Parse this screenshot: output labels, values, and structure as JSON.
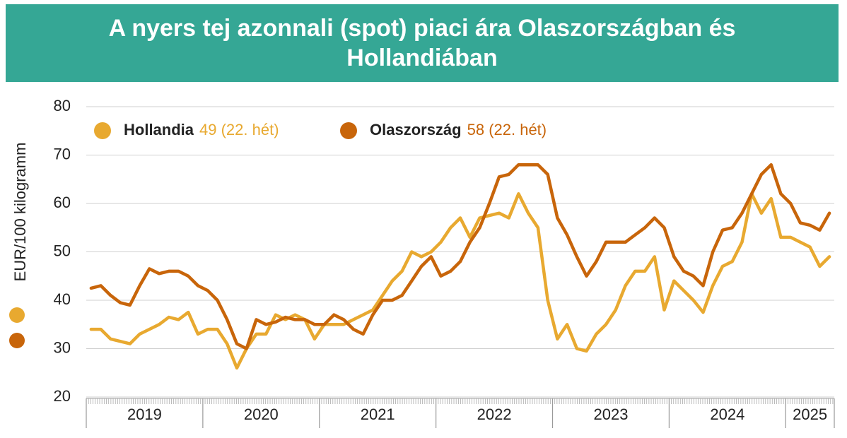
{
  "chart_data": {
    "type": "line",
    "title": "A nyers tej azonnali (spot) piaci ára Olaszországban és Hollandiában",
    "y_label": "EUR/100 kilogramm",
    "categories": [
      null,
      null,
      null,
      null,
      null,
      null,
      "2019",
      null,
      null,
      null,
      null,
      null,
      null,
      null,
      null,
      null,
      null,
      null,
      "2020",
      null,
      null,
      null,
      null,
      null,
      null,
      null,
      null,
      null,
      null,
      null,
      "2021",
      null,
      null,
      null,
      null,
      null,
      null,
      null,
      null,
      null,
      null,
      null,
      "2022",
      null,
      null,
      null,
      null,
      null,
      null,
      null,
      null,
      null,
      null,
      null,
      "2023",
      null,
      null,
      null,
      null,
      null,
      null,
      null,
      null,
      null,
      null,
      null,
      "2024",
      null,
      null,
      null,
      null,
      null,
      null,
      null,
      "2025",
      null,
      null
    ],
    "ylim": [
      20,
      80
    ],
    "yticks": [
      20,
      30,
      40,
      50,
      60,
      70,
      80
    ],
    "grid": true,
    "series": [
      {
        "name": "Hollandia",
        "legend_note": "49 (22. hét)",
        "color": "#e8a930",
        "values": [
          34,
          34,
          32,
          31.5,
          31,
          33,
          34,
          35,
          36.5,
          36,
          37.5,
          33,
          34,
          34,
          31,
          26,
          30,
          33,
          33,
          37,
          36,
          37,
          36,
          32,
          35,
          35,
          35,
          36,
          37,
          38,
          41,
          44,
          46,
          50,
          49,
          50,
          52,
          55,
          57,
          53,
          57,
          57.5,
          58,
          57,
          62,
          58,
          55,
          40,
          32,
          35,
          30,
          29.5,
          33,
          35,
          38,
          43,
          46,
          46,
          49,
          38,
          44,
          42,
          40,
          37.5,
          43,
          47,
          48,
          52,
          62,
          58,
          61,
          53,
          53,
          52,
          51,
          47,
          49
        ]
      },
      {
        "name": "Olaszország",
        "legend_note": "58 (22. hét)",
        "color": "#c8650a",
        "values": [
          42.5,
          43,
          41,
          39.5,
          39,
          43,
          46.5,
          45.5,
          46,
          46,
          45,
          43,
          42,
          40,
          36,
          31,
          30,
          36,
          35,
          35.5,
          36.5,
          36,
          36,
          35,
          35,
          37,
          36,
          34,
          33,
          37,
          40,
          40,
          41,
          44,
          47,
          49,
          45,
          46,
          48,
          52,
          55,
          60,
          65.5,
          66,
          68,
          68,
          68,
          66,
          57,
          53.5,
          49,
          45,
          48,
          52,
          52,
          52,
          53.5,
          55,
          57,
          55,
          49,
          46,
          45,
          43,
          50,
          54.5,
          55,
          58,
          62,
          66,
          68,
          62,
          60,
          56,
          55.5,
          54.5,
          58
        ]
      }
    ]
  }
}
